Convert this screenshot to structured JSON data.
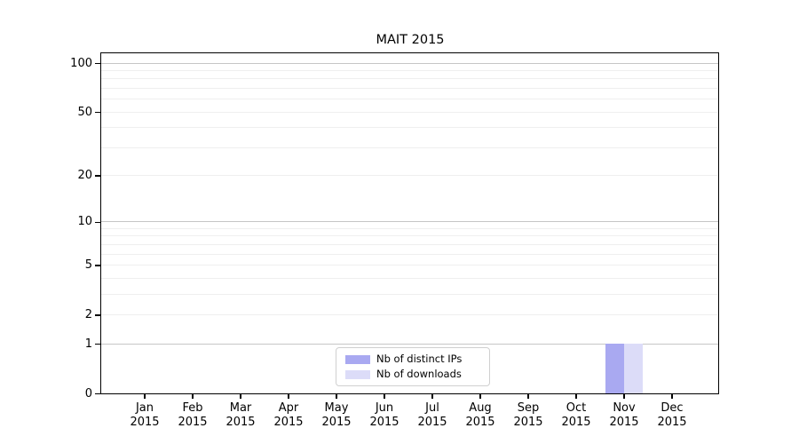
{
  "chart_data": {
    "type": "bar",
    "title": "MAIT 2015",
    "y_scale": "log1p",
    "y_axis_max": 115,
    "y_ticks": [
      0,
      1,
      2,
      5,
      10,
      20,
      50,
      100
    ],
    "y_major_gridlines": [
      1,
      10,
      100
    ],
    "y_minor_gridlines": [
      2,
      3,
      4,
      5,
      6,
      7,
      8,
      9,
      20,
      30,
      40,
      50,
      60,
      70,
      80,
      90
    ],
    "grid": true,
    "legend_position": "bottom-center-inside",
    "categories": [
      "Jan 2015",
      "Feb 2015",
      "Mar 2015",
      "Apr 2015",
      "May 2015",
      "Jun 2015",
      "Jul 2015",
      "Aug 2015",
      "Sep 2015",
      "Oct 2015",
      "Nov 2015",
      "Dec 2015"
    ],
    "months": [
      {
        "month": "Jan",
        "year": "2015"
      },
      {
        "month": "Feb",
        "year": "2015"
      },
      {
        "month": "Mar",
        "year": "2015"
      },
      {
        "month": "Apr",
        "year": "2015"
      },
      {
        "month": "May",
        "year": "2015"
      },
      {
        "month": "Jun",
        "year": "2015"
      },
      {
        "month": "Jul",
        "year": "2015"
      },
      {
        "month": "Aug",
        "year": "2015"
      },
      {
        "month": "Sep",
        "year": "2015"
      },
      {
        "month": "Oct",
        "year": "2015"
      },
      {
        "month": "Nov",
        "year": "2015"
      },
      {
        "month": "Dec",
        "year": "2015"
      }
    ],
    "series": [
      {
        "name": "Nb of distinct IPs",
        "color": "#a9a9f1",
        "values": [
          0,
          0,
          0,
          0,
          0,
          0,
          0,
          0,
          0,
          0,
          1,
          0
        ]
      },
      {
        "name": "Nb of downloads",
        "color": "#dcdcf8",
        "values": [
          0,
          0,
          0,
          0,
          0,
          0,
          0,
          0,
          0,
          0,
          1,
          0
        ]
      }
    ]
  },
  "colors": {
    "background": "#ffffff",
    "axis": "#000000",
    "major_grid": "#c6c6c6",
    "minor_grid": "#efefef",
    "legend_border": "#d0d0d0",
    "text": "#000000"
  }
}
